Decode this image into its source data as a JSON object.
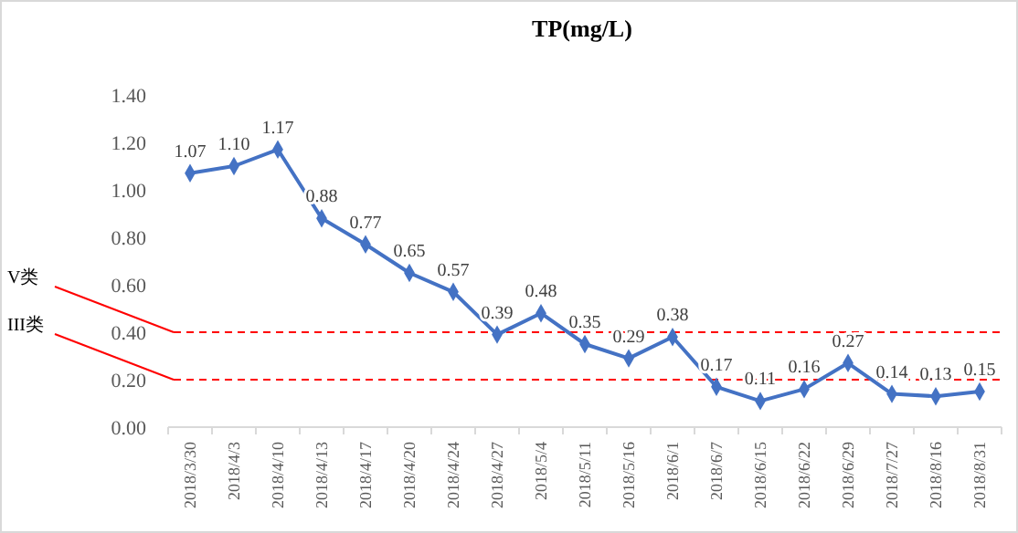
{
  "chart_data": {
    "type": "line",
    "title": "TP(mg/L)",
    "categories": [
      "2018/3/30",
      "2018/4/3",
      "2018/4/10",
      "2018/4/13",
      "2018/4/17",
      "2018/4/20",
      "2018/4/24",
      "2018/4/27",
      "2018/5/4",
      "2018/5/11",
      "2018/5/16",
      "2018/6/1",
      "2018/6/7",
      "2018/6/15",
      "2018/6/22",
      "2018/6/29",
      "2018/7/27",
      "2018/8/16",
      "2018/8/31"
    ],
    "series": [
      {
        "color": "#4472c4",
        "values": [
          1.07,
          1.1,
          1.17,
          0.88,
          0.77,
          0.65,
          0.57,
          0.39,
          0.48,
          0.35,
          0.29,
          0.38,
          0.17,
          0.11,
          0.16,
          0.27,
          0.14,
          0.13,
          0.15
        ],
        "value_labels": [
          "1.07",
          "1.10",
          "1.17",
          "0.88",
          "0.77",
          "0.65",
          "0.57",
          "0.39",
          "0.48",
          "0.35",
          "0.29",
          "0.38",
          "0.17",
          "0.11",
          "0.16",
          "0.27",
          "0.14",
          "0.13",
          "0.15"
        ]
      }
    ],
    "ylim": [
      0,
      1.4
    ],
    "yticks": [
      {
        "value": 0,
        "label": "0.00"
      },
      {
        "value": 0.2,
        "label": "0.20"
      },
      {
        "value": 0.4,
        "label": "0.40"
      },
      {
        "value": 0.6,
        "label": "0.60"
      },
      {
        "value": 0.8,
        "label": "0.80"
      },
      {
        "value": 1,
        "label": "1.00"
      },
      {
        "value": 1.2,
        "label": "1.20"
      },
      {
        "value": 1.4,
        "label": "1.40"
      }
    ],
    "ref_lines": [
      {
        "axis": "y",
        "value": 0.4,
        "label": "V类",
        "color": "#ff0000",
        "line_style": "dashed"
      },
      {
        "axis": "y",
        "value": 0.2,
        "label": "III类",
        "color": "#ff0000",
        "line_style": "dashed"
      }
    ],
    "marker": "diamond",
    "line_style": "solid"
  }
}
